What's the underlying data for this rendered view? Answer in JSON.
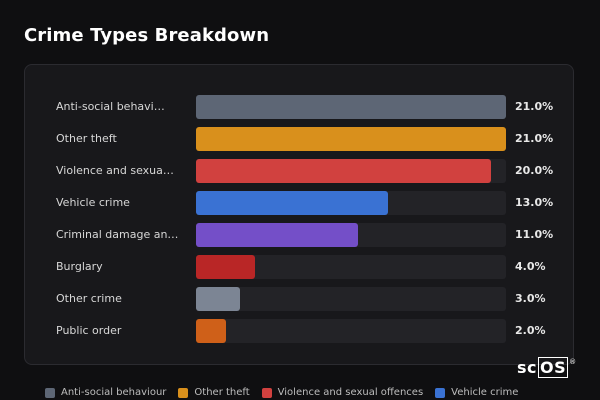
{
  "title": "Crime Types Breakdown",
  "chart_data": {
    "type": "bar",
    "orientation": "horizontal",
    "categories": [
      "Anti-social behavi…",
      "Other theft",
      "Violence and sexua…",
      "Vehicle crime",
      "Criminal damage an…",
      "Burglary",
      "Other crime",
      "Public order"
    ],
    "values": [
      21.0,
      21.0,
      20.0,
      13.0,
      11.0,
      4.0,
      3.0,
      2.0
    ],
    "value_labels": [
      "21.0%",
      "21.0%",
      "20.0%",
      "13.0%",
      "11.0%",
      "4.0%",
      "3.0%",
      "2.0%"
    ],
    "colors": [
      "#5d6675",
      "#d9901c",
      "#d1413f",
      "#3a72d3",
      "#744fc8",
      "#b92626",
      "#7c8594",
      "#cf6019"
    ],
    "xlim": [
      0,
      21
    ],
    "legend": [
      {
        "label": "Anti-social behaviour",
        "color": "#5d6675"
      },
      {
        "label": "Other theft",
        "color": "#d9901c"
      },
      {
        "label": "Violence and sexual offences",
        "color": "#d1413f"
      },
      {
        "label": "Vehicle crime",
        "color": "#3a72d3"
      }
    ],
    "legend_position": "bottom"
  },
  "logo": {
    "text_plain": "sc",
    "text_boxed": "OS",
    "mark": "®"
  }
}
